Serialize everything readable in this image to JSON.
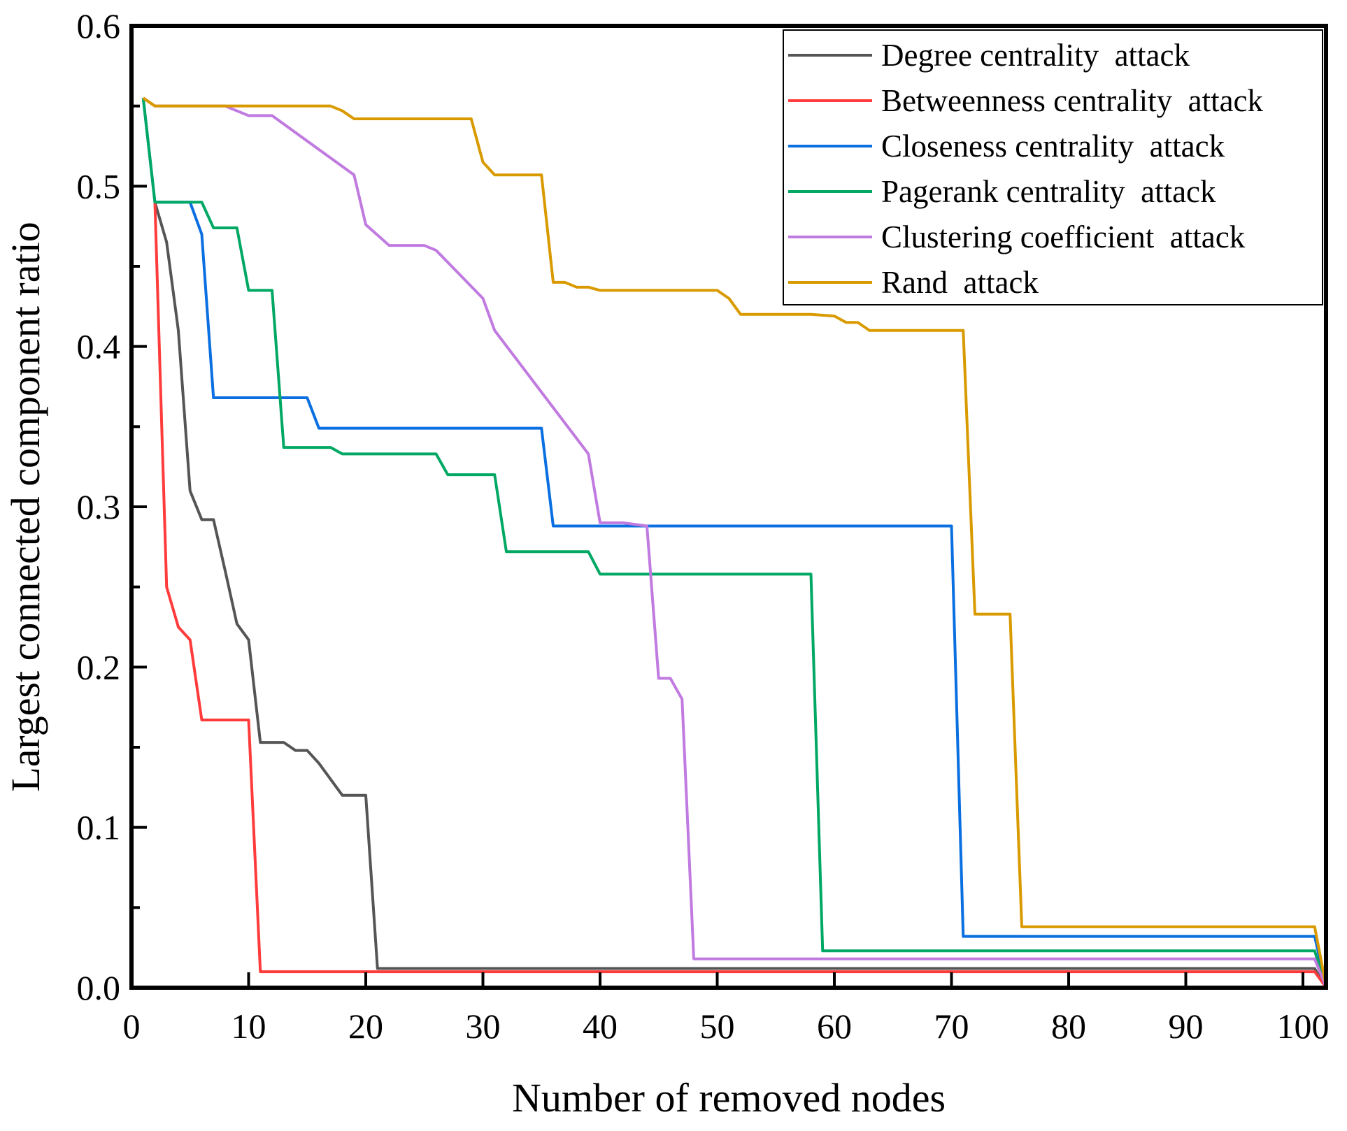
{
  "chart_data": {
    "type": "line",
    "title": "",
    "xlabel": "Number of removed nodes",
    "ylabel": "Largest  connected component ratio",
    "xlim": [
      0,
      102
    ],
    "ylim": [
      0,
      0.6
    ],
    "xticks": [
      0,
      10,
      20,
      30,
      40,
      50,
      60,
      70,
      80,
      90,
      100
    ],
    "xtick_labels": [
      "0",
      "10",
      "20",
      "30",
      "40",
      "50",
      "60",
      "70",
      "80",
      "90",
      "100"
    ],
    "yticks": [
      0,
      0.1,
      0.2,
      0.3,
      0.4,
      0.5,
      0.6
    ],
    "ytick_labels": [
      "0.0",
      "0.1",
      "0.2",
      "0.3",
      "0.4",
      "0.5",
      "0.6"
    ],
    "grid": false,
    "legend_position": "top-right",
    "series": [
      {
        "name": "Degree centrality  attack",
        "color": "#555555",
        "points": [
          [
            2,
            0.49
          ],
          [
            3,
            0.465
          ],
          [
            4,
            0.41
          ],
          [
            5,
            0.31
          ],
          [
            6,
            0.292
          ],
          [
            7,
            0.292
          ],
          [
            8,
            0.26
          ],
          [
            9,
            0.227
          ],
          [
            10,
            0.217
          ],
          [
            11,
            0.153
          ],
          [
            13,
            0.153
          ],
          [
            14,
            0.148
          ],
          [
            15,
            0.148
          ],
          [
            16,
            0.14
          ],
          [
            18,
            0.12
          ],
          [
            20,
            0.12
          ],
          [
            21,
            0.012
          ],
          [
            101,
            0.012
          ],
          [
            102,
            0
          ]
        ]
      },
      {
        "name": "Betweenness centrality  attack",
        "color": "#ff3b3b",
        "points": [
          [
            2,
            0.49
          ],
          [
            3,
            0.25
          ],
          [
            4,
            0.225
          ],
          [
            5,
            0.217
          ],
          [
            6,
            0.167
          ],
          [
            10,
            0.167
          ],
          [
            11,
            0.01
          ],
          [
            101,
            0.01
          ],
          [
            102,
            0
          ]
        ]
      },
      {
        "name": "Closeness centrality  attack",
        "color": "#0a6fe0",
        "points": [
          [
            1,
            0.555
          ],
          [
            2,
            0.49
          ],
          [
            5,
            0.49
          ],
          [
            6,
            0.47
          ],
          [
            7,
            0.368
          ],
          [
            15,
            0.368
          ],
          [
            16,
            0.349
          ],
          [
            35,
            0.349
          ],
          [
            36,
            0.288
          ],
          [
            70,
            0.288
          ],
          [
            71,
            0.032
          ],
          [
            101,
            0.032
          ],
          [
            102,
            0
          ]
        ]
      },
      {
        "name": "Pagerank centrality  attack",
        "color": "#00a864",
        "points": [
          [
            1,
            0.555
          ],
          [
            2,
            0.49
          ],
          [
            6,
            0.49
          ],
          [
            7,
            0.474
          ],
          [
            9,
            0.474
          ],
          [
            10,
            0.435
          ],
          [
            12,
            0.435
          ],
          [
            13,
            0.337
          ],
          [
            17,
            0.337
          ],
          [
            18,
            0.333
          ],
          [
            26,
            0.333
          ],
          [
            27,
            0.32
          ],
          [
            31,
            0.32
          ],
          [
            32,
            0.272
          ],
          [
            39,
            0.272
          ],
          [
            40,
            0.258
          ],
          [
            58,
            0.258
          ],
          [
            59,
            0.023
          ],
          [
            101,
            0.023
          ],
          [
            102,
            0
          ]
        ]
      },
      {
        "name": "Clustering coefficient  attack",
        "color": "#c07ae0",
        "points": [
          [
            1,
            0.555
          ],
          [
            2,
            0.55
          ],
          [
            8,
            0.55
          ],
          [
            10,
            0.544
          ],
          [
            12,
            0.544
          ],
          [
            19,
            0.507
          ],
          [
            20,
            0.476
          ],
          [
            22,
            0.463
          ],
          [
            25,
            0.463
          ],
          [
            26,
            0.46
          ],
          [
            30,
            0.43
          ],
          [
            31,
            0.41
          ],
          [
            39,
            0.333
          ],
          [
            40,
            0.29
          ],
          [
            42,
            0.29
          ],
          [
            44,
            0.288
          ],
          [
            45,
            0.193
          ],
          [
            46,
            0.193
          ],
          [
            47,
            0.18
          ],
          [
            48,
            0.018
          ],
          [
            101,
            0.018
          ],
          [
            102,
            0
          ]
        ]
      },
      {
        "name": "Rand  attack",
        "color": "#d99a00",
        "points": [
          [
            1,
            0.555
          ],
          [
            2,
            0.55
          ],
          [
            17,
            0.55
          ],
          [
            18,
            0.547
          ],
          [
            19,
            0.542
          ],
          [
            29,
            0.542
          ],
          [
            30,
            0.515
          ],
          [
            31,
            0.507
          ],
          [
            35,
            0.507
          ],
          [
            36,
            0.44
          ],
          [
            37,
            0.44
          ],
          [
            38,
            0.437
          ],
          [
            39,
            0.437
          ],
          [
            40,
            0.435
          ],
          [
            50,
            0.435
          ],
          [
            51,
            0.43
          ],
          [
            52,
            0.42
          ],
          [
            58,
            0.42
          ],
          [
            60,
            0.419
          ],
          [
            61,
            0.415
          ],
          [
            62,
            0.415
          ],
          [
            63,
            0.41
          ],
          [
            71,
            0.41
          ],
          [
            72,
            0.233
          ],
          [
            75,
            0.233
          ],
          [
            76,
            0.038
          ],
          [
            101,
            0.038
          ],
          [
            102,
            0
          ]
        ]
      }
    ]
  }
}
